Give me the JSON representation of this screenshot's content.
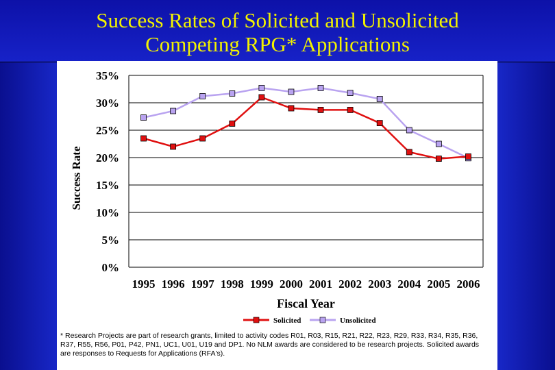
{
  "title_line1": "Success Rates of Solicited and Unsolicited",
  "title_line2": "Competing RPG* Applications",
  "footnote": "* Research Projects are part of research grants, limited to activity codes R01, R03, R15, R21, R22, R23, R29, R33, R34, R35, R36, R37, R55, R56, P01, P42, PN1, UC1, U01, U19 and DP1.  No NLM awards are considered to be research projects.  Solicited awards are responses to Requests for Applications (RFA's).",
  "colors": {
    "background": "#1a2bd0",
    "title": "#f2f200",
    "solicited": "#e01010",
    "unsolicited": "#b9a3f0"
  },
  "chart_data": {
    "type": "line",
    "xlabel": "Fiscal Year",
    "ylabel": "Success Rate",
    "ylim": [
      0,
      35
    ],
    "yticks": [
      "0%",
      "5%",
      "10%",
      "15%",
      "20%",
      "25%",
      "30%",
      "35%"
    ],
    "x": [
      "1995",
      "1996",
      "1997",
      "1998",
      "1999",
      "2000",
      "2001",
      "2002",
      "2003",
      "2004",
      "2005",
      "2006"
    ],
    "grid": true,
    "legend": "bottom",
    "series": [
      {
        "name": "Solicited",
        "color": "#e01010",
        "values": [
          23.5,
          22.0,
          23.5,
          26.2,
          31.0,
          29.0,
          28.7,
          28.7,
          26.3,
          21.0,
          19.8,
          20.2
        ]
      },
      {
        "name": "Unsolicited",
        "color": "#b9a3f0",
        "values": [
          27.3,
          28.5,
          31.2,
          31.7,
          32.7,
          32.0,
          32.7,
          31.8,
          30.7,
          25.0,
          22.5,
          19.9
        ]
      }
    ]
  }
}
